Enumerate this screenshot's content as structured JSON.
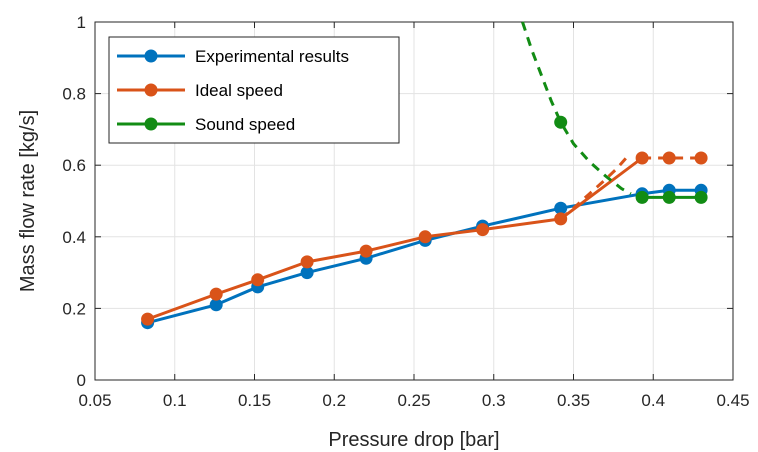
{
  "chart_data": {
    "type": "line",
    "xlabel": "Pressure drop [bar]",
    "ylabel": "Mass flow rate [kg/s]",
    "xlim": [
      0.05,
      0.45
    ],
    "ylim": [
      0,
      1
    ],
    "xticks": [
      0.05,
      0.1,
      0.15,
      0.2,
      0.25,
      0.3,
      0.35,
      0.4,
      0.45
    ],
    "yticks": [
      0,
      0.2,
      0.4,
      0.6,
      0.8,
      1
    ],
    "xtick_labels": [
      "0.05",
      "0.1",
      "0.15",
      "0.2",
      "0.25",
      "0.3",
      "0.35",
      "0.4",
      "0.45"
    ],
    "ytick_labels": [
      "0",
      "0.2",
      "0.4",
      "0.6",
      "0.8",
      "1"
    ],
    "grid": true,
    "legend_position": "top-left",
    "series": [
      {
        "name": "Experimental results",
        "color": "#0072BD",
        "points": [
          [
            0.083,
            0.16
          ],
          [
            0.126,
            0.21
          ],
          [
            0.152,
            0.26
          ],
          [
            0.183,
            0.3
          ],
          [
            0.22,
            0.34
          ],
          [
            0.257,
            0.39
          ],
          [
            0.293,
            0.43
          ],
          [
            0.342,
            0.48
          ],
          [
            0.393,
            0.52
          ],
          [
            0.41,
            0.53
          ],
          [
            0.43,
            0.53
          ]
        ],
        "dashed_segments": []
      },
      {
        "name": "Ideal speed",
        "color": "#D95319",
        "points": [
          [
            0.083,
            0.17
          ],
          [
            0.126,
            0.24
          ],
          [
            0.152,
            0.28
          ],
          [
            0.183,
            0.33
          ],
          [
            0.22,
            0.36
          ],
          [
            0.257,
            0.4
          ],
          [
            0.293,
            0.42
          ],
          [
            0.342,
            0.45
          ],
          [
            0.393,
            0.62
          ],
          [
            0.41,
            0.62
          ],
          [
            0.43,
            0.62
          ]
        ],
        "dashed_segments": [
          [
            [
              0.342,
              0.45
            ],
            [
              0.35,
              0.48
            ],
            [
              0.36,
              0.52
            ],
            [
              0.37,
              0.56
            ],
            [
              0.377,
              0.59
            ],
            [
              0.383,
              0.62
            ]
          ],
          [
            [
              0.393,
              0.62
            ],
            [
              0.43,
              0.62
            ]
          ]
        ]
      },
      {
        "name": "Sound speed",
        "color": "#128C14",
        "points": [
          [
            0.342,
            0.72
          ],
          [
            0.393,
            0.51
          ],
          [
            0.41,
            0.51
          ],
          [
            0.43,
            0.51
          ]
        ],
        "dashed_segments": [
          [
            [
              0.318,
              1.0
            ],
            [
              0.324,
              0.92
            ],
            [
              0.33,
              0.85
            ],
            [
              0.336,
              0.78
            ],
            [
              0.342,
              0.72
            ],
            [
              0.35,
              0.66
            ],
            [
              0.36,
              0.61
            ],
            [
              0.37,
              0.57
            ],
            [
              0.38,
              0.535
            ],
            [
              0.386,
              0.52
            ]
          ]
        ]
      }
    ]
  }
}
